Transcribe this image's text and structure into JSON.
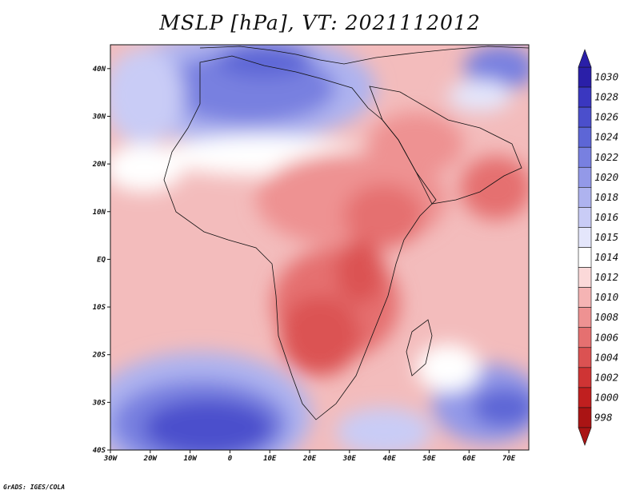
{
  "title": "MSLP [hPa], VT: 2021112012",
  "credit": "GrADS: IGES/COLA",
  "axes": {
    "lat_labels": [
      "40N",
      "30N",
      "20N",
      "10N",
      "EQ",
      "10S",
      "20S",
      "30S",
      "40S"
    ],
    "lon_labels": [
      "30W",
      "20W",
      "10W",
      "0",
      "10E",
      "20E",
      "30E",
      "40E",
      "50E",
      "60E",
      "70E"
    ]
  },
  "colorbar": {
    "levels": [
      "1030",
      "1028",
      "1026",
      "1024",
      "1022",
      "1020",
      "1018",
      "1016",
      "1015",
      "1014",
      "1012",
      "1010",
      "1008",
      "1006",
      "1004",
      "1002",
      "1000",
      "998"
    ],
    "colors": [
      "#2a1fa8",
      "#3a37c0",
      "#4b4fcc",
      "#5d66d6",
      "#7880e0",
      "#9399e8",
      "#aeb3ef",
      "#c9ccf6",
      "#e4e6fb",
      "#ffffff",
      "#fbd9d9",
      "#f5b4b4",
      "#ee9292",
      "#e57070",
      "#db5252",
      "#cf3434",
      "#c01f1f",
      "#aa1414"
    ]
  },
  "map": {
    "lat_range": [
      -40,
      45
    ],
    "lon_range": [
      -30,
      75
    ]
  }
}
